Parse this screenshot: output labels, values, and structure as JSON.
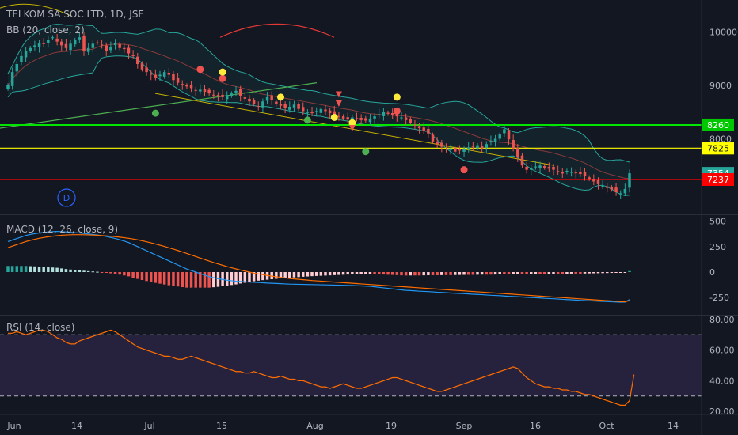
{
  "header": {
    "symbol_line": "TELKOM SA SOC LTD, 1D, JSE",
    "bb_label": "BB (20, close, 2)",
    "macd_label": "MACD (12, 26, close, 9)",
    "rsi_label": "RSI (14, close)"
  },
  "colors": {
    "background": "#131722",
    "up": "#26a69a",
    "down": "#ef5350",
    "bb_band": "#26a69a",
    "bb_basis": "#8b3a3a",
    "green_level": "#00e600",
    "yellow_level": "#ffff00",
    "red_level": "#ff0000",
    "macd_line": "#2196f3",
    "signal_line": "#ff6d00",
    "rsi_line": "#ff6d00",
    "rsi_band": "#7e57c2"
  },
  "badge_letter": "D",
  "chart_data": [
    {
      "type": "candlestick",
      "title": "TELKOM SA SOC LTD, 1D, JSE",
      "y_ticks": [
        10000,
        9000,
        8000
      ],
      "ylim": [
        6600,
        10600
      ],
      "price_labels": [
        {
          "value": 8260,
          "text": "8260",
          "color": "#00c800"
        },
        {
          "value": 7825,
          "text": "7825",
          "color": "#ffff00"
        },
        {
          "value": 7354,
          "text": "7354",
          "color": "#26a69a"
        },
        {
          "value": 7237,
          "text": "7237",
          "color": "#ff0000"
        }
      ],
      "levels": [
        {
          "value": 8260,
          "color": "#00e600",
          "width": 2
        },
        {
          "value": 7825,
          "color": "#ffff00",
          "width": 1.2
        },
        {
          "value": 7237,
          "color": "#ff0000",
          "width": 1.2
        }
      ],
      "close": [
        9000,
        9250,
        9400,
        9550,
        9650,
        9700,
        9750,
        9800,
        9780,
        9850,
        9900,
        9820,
        9750,
        9700,
        9780,
        9850,
        9900,
        9650,
        9700,
        9780,
        9800,
        9760,
        9650,
        9720,
        9800,
        9700,
        9680,
        9600,
        9550,
        9400,
        9300,
        9250,
        9200,
        9150,
        9200,
        9250,
        9200,
        9100,
        9050,
        9000,
        8980,
        8950,
        8900,
        8920,
        8880,
        8850,
        8820,
        8800,
        8780,
        8820,
        8850,
        8900,
        8800,
        8750,
        8700,
        8650,
        8600,
        8700,
        8780,
        8720,
        8650,
        8620,
        8580,
        8600,
        8640,
        8560,
        8520,
        8500,
        8480,
        8520,
        8560,
        8520,
        8480,
        8450,
        8420,
        8380,
        8360,
        8400,
        8380,
        8350,
        8340,
        8380,
        8420,
        8460,
        8500,
        8470,
        8440,
        8420,
        8400,
        8350,
        8300,
        8250,
        8200,
        8150,
        8100,
        7950,
        7900,
        7850,
        7800,
        7820,
        7760,
        7780,
        7800,
        7840,
        7860,
        7880,
        7820,
        7900,
        7960,
        8000,
        8080,
        8180,
        7990,
        7820,
        7650,
        7500,
        7420,
        7450,
        7480,
        7500,
        7460,
        7440,
        7420,
        7380,
        7350,
        7400,
        7380,
        7360,
        7340,
        7300,
        7250,
        7200,
        7150,
        7120,
        7080,
        7050,
        7000,
        6980,
        7060,
        7354
      ]
    },
    {
      "type": "macd",
      "title": "MACD (12, 26, close, 9)",
      "y_ticks": [
        500,
        250,
        0,
        -250
      ],
      "ylim": [
        -420,
        560
      ],
      "macd": [
        300,
        315,
        330,
        345,
        360,
        370,
        378,
        385,
        390,
        395,
        398,
        400,
        398,
        395,
        392,
        388,
        385,
        380,
        375,
        370,
        365,
        358,
        350,
        340,
        330,
        318,
        305,
        290,
        270,
        250,
        230,
        210,
        190,
        170,
        150,
        130,
        110,
        90,
        70,
        50,
        30,
        15,
        0,
        -15,
        -30,
        -45,
        -55,
        -65,
        -72,
        -80,
        -85,
        -90,
        -92,
        -95,
        -98,
        -100,
        -102,
        -105,
        -108,
        -110,
        -112,
        -114,
        -116,
        -118,
        -119,
        -120,
        -121,
        -122,
        -123,
        -124,
        -125,
        -126,
        -127,
        -128,
        -129,
        -130,
        -131,
        -132,
        -134,
        -136,
        -138,
        -140,
        -145,
        -150,
        -155,
        -160,
        -165,
        -170,
        -175,
        -180,
        -182,
        -185,
        -188,
        -190,
        -192,
        -195,
        -198,
        -200,
        -203,
        -206,
        -208,
        -210,
        -212,
        -215,
        -218,
        -220,
        -222,
        -225,
        -228,
        -230,
        -232,
        -235,
        -238,
        -240,
        -242,
        -245,
        -248,
        -250,
        -252,
        -255,
        -258,
        -260,
        -262,
        -265,
        -268,
        -270,
        -272,
        -275,
        -278,
        -280,
        -282,
        -284,
        -286,
        -288,
        -290,
        -292,
        -294,
        -296,
        -295,
        -270
      ],
      "signal": [
        240,
        255,
        270,
        285,
        300,
        312,
        322,
        332,
        340,
        347,
        353,
        358,
        362,
        365,
        367,
        368,
        368,
        367,
        366,
        364,
        362,
        359,
        356,
        352,
        348,
        343,
        338,
        332,
        325,
        317,
        308,
        298,
        287,
        276,
        264,
        252,
        239,
        226,
        212,
        198,
        183,
        168,
        153,
        138,
        123,
        108,
        94,
        80,
        67,
        54,
        42,
        31,
        20,
        10,
        0,
        -10,
        -18,
        -26,
        -33,
        -40,
        -46,
        -52,
        -57,
        -62,
        -67,
        -71,
        -75,
        -79,
        -83,
        -86,
        -89,
        -92,
        -95,
        -98,
        -101,
        -104,
        -107,
        -110,
        -113,
        -116,
        -119,
        -122,
        -125,
        -128,
        -131,
        -134,
        -137,
        -140,
        -143,
        -146,
        -149,
        -152,
        -155,
        -158,
        -161,
        -164,
        -167,
        -170,
        -173,
        -176,
        -179,
        -182,
        -185,
        -188,
        -191,
        -194,
        -197,
        -200,
        -203,
        -206,
        -209,
        -212,
        -215,
        -218,
        -221,
        -224,
        -227,
        -230,
        -233,
        -236,
        -239,
        -242,
        -245,
        -248,
        -251,
        -254,
        -257,
        -260,
        -263,
        -266,
        -269,
        -272,
        -275,
        -278,
        -281,
        -284,
        -287,
        -290,
        -292,
        -280
      ]
    },
    {
      "type": "line",
      "title": "RSI (14, close)",
      "y_ticks": [
        80,
        60,
        40,
        20
      ],
      "ylim": [
        18,
        82
      ],
      "band": [
        30,
        70
      ],
      "values": [
        71,
        71,
        72,
        71,
        70,
        71,
        72,
        73,
        73,
        72,
        70,
        68,
        67,
        65,
        64,
        64,
        66,
        67,
        68,
        69,
        70,
        71,
        72,
        73,
        72,
        70,
        68,
        66,
        64,
        62,
        61,
        60,
        59,
        58,
        57,
        56,
        56,
        55,
        54,
        54,
        55,
        56,
        55,
        54,
        53,
        52,
        51,
        50,
        49,
        48,
        47,
        46,
        46,
        45,
        45,
        46,
        45,
        44,
        43,
        42,
        42,
        43,
        42,
        41,
        41,
        40,
        40,
        39,
        38,
        37,
        36,
        36,
        35,
        36,
        37,
        38,
        37,
        36,
        35,
        35,
        36,
        37,
        38,
        39,
        40,
        41,
        42,
        42,
        41,
        40,
        39,
        38,
        37,
        36,
        35,
        34,
        33,
        33,
        34,
        35,
        36,
        37,
        38,
        39,
        40,
        41,
        42,
        43,
        44,
        45,
        46,
        47,
        48,
        49,
        48,
        45,
        42,
        40,
        38,
        37,
        36,
        36,
        35,
        35,
        34,
        34,
        33,
        33,
        32,
        31,
        31,
        30,
        29,
        28,
        27,
        26,
        25,
        24,
        24,
        27,
        44
      ],
      "x_ticks": [
        "Jun",
        "14",
        "Jul",
        "15",
        "Aug",
        "19",
        "Sep",
        "16",
        "Oct",
        "14"
      ]
    }
  ]
}
